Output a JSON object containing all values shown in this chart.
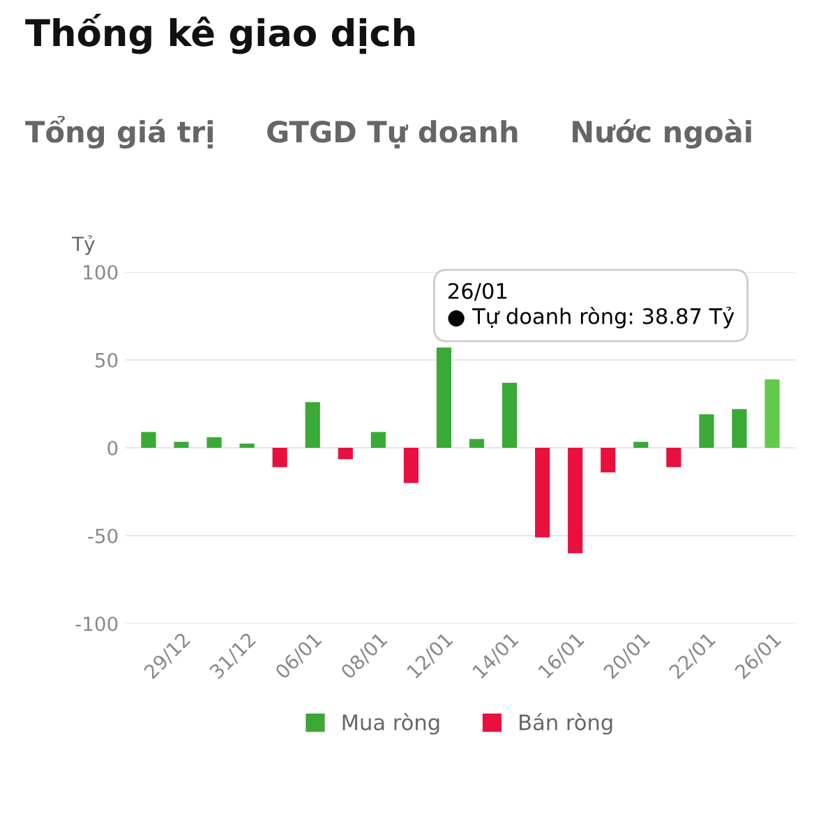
{
  "chart_data": {
    "type": "bar",
    "title": "Thống kê giao dịch",
    "subtitle": "Tổng giá trị     GTGD Tự doanh     Nước ngoài",
    "ylabel": "Tỷ",
    "categories": [
      null,
      "29/12",
      null,
      "31/12",
      null,
      "06/01",
      null,
      "08/01",
      null,
      "12/01",
      null,
      "14/01",
      null,
      "16/01",
      null,
      "20/01",
      null,
      "22/01",
      null,
      "26/01"
    ],
    "series": [
      {
        "name": "Mua ròng",
        "color": "#3aa935",
        "colors": [
          "#3aa935",
          "#3aa935",
          "#3aa935",
          "#3aa935",
          null,
          "#3aa935",
          null,
          "#3aa935",
          null,
          "#3aa935",
          "#3aa935",
          "#3aa935",
          null,
          null,
          null,
          "#3aa935",
          null,
          "#3aa935",
          "#3aa935",
          "#62c94a"
        ],
        "values": [
          9,
          3.4,
          6,
          2.4,
          null,
          26,
          null,
          9,
          null,
          57,
          5,
          37,
          null,
          null,
          null,
          3.4,
          null,
          19,
          22,
          38.87
        ]
      },
      {
        "name": "Bán ròng",
        "color": "#e8103f",
        "values": [
          null,
          null,
          null,
          null,
          -11,
          null,
          -6.5,
          null,
          -20,
          null,
          null,
          null,
          -51,
          -60,
          -14,
          null,
          -11,
          null,
          null,
          null
        ]
      }
    ],
    "ylim": [
      -100,
      100
    ],
    "yticks": [
      -100,
      -50,
      0,
      50,
      100
    ],
    "grid": "y",
    "legend": "bottom",
    "annotations": [
      "26/01\n● Tự doanh ròng: 38.87 Tỷ"
    ]
  }
}
